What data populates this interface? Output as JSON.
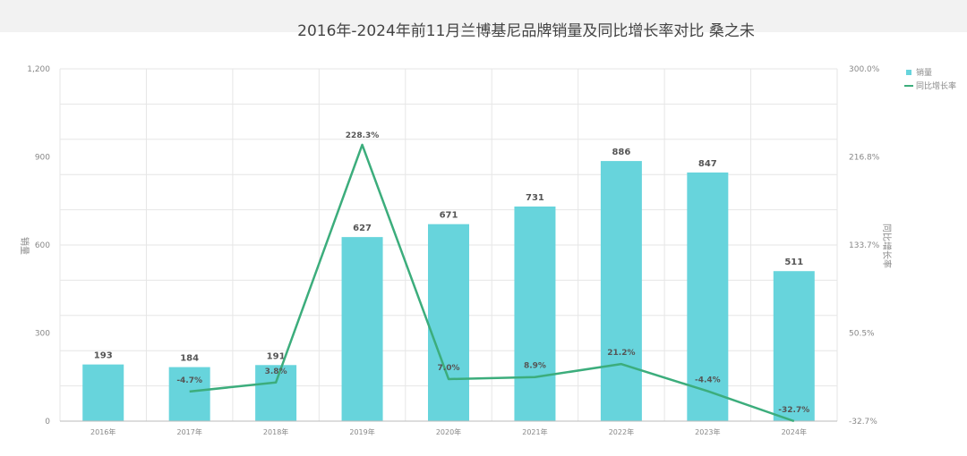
{
  "chart_data": {
    "type": "bar",
    "title": "2016年-2024年前11月兰博基尼品牌销量及同比增长率对比  桑之未",
    "categories": [
      "2016年",
      "2017年",
      "2018年",
      "2019年",
      "2020年",
      "2021年",
      "2022年",
      "2023年",
      "2024年"
    ],
    "series": [
      {
        "name": "销量",
        "type": "bar",
        "axis": "left",
        "values": [
          193,
          184,
          191,
          627,
          671,
          731,
          886,
          847,
          511
        ]
      },
      {
        "name": "同比增长率",
        "type": "line",
        "axis": "right",
        "values": [
          null,
          -4.7,
          3.8,
          228.3,
          7.0,
          8.9,
          21.2,
          -4.4,
          -32.7
        ]
      }
    ],
    "ylabel": "销量",
    "y2label": "同比增长率",
    "ylim": [
      0,
      1200
    ],
    "y2lim": [
      -32.7,
      300
    ],
    "yticks": [
      "0",
      "300",
      "600",
      "900",
      "1,200"
    ],
    "y2ticks": [
      "-32.7%",
      "50.5%",
      "133.7%",
      "216.8%",
      "300.0%"
    ],
    "point_labels": [
      "",
      "-4.7%",
      "3.8%",
      "228.3%",
      "7.0%",
      "8.9%",
      "21.2%",
      "-4.4%",
      "-32.7%"
    ],
    "legend": "top-right",
    "grid": true,
    "colors": {
      "bar": "#67d4dc",
      "line": "#3cad7c"
    }
  }
}
